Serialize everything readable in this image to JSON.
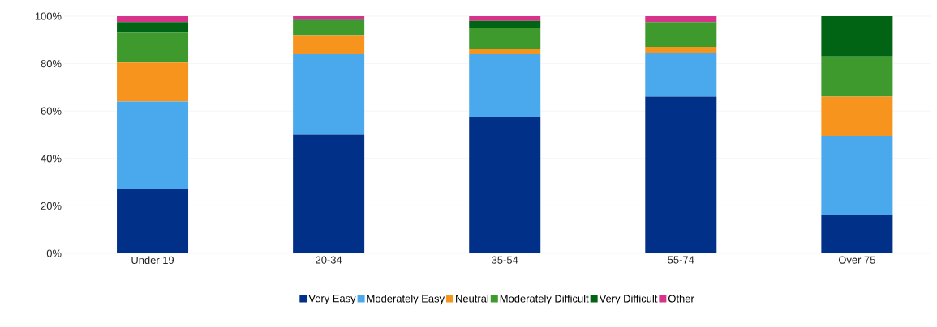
{
  "chart_data": {
    "type": "bar",
    "stacked": true,
    "categories": [
      "Under 19",
      "20-34",
      "35-54",
      "55-74",
      "Over 75"
    ],
    "series": [
      {
        "name": "Very Easy",
        "color": "#003087",
        "values": [
          27,
          50,
          57.5,
          66,
          16
        ]
      },
      {
        "name": "Moderately Easy",
        "color": "#4aa8ec",
        "values": [
          37,
          34,
          26.5,
          18.5,
          33.5
        ]
      },
      {
        "name": "Neutral",
        "color": "#f7941d",
        "values": [
          16.5,
          8,
          2,
          2.5,
          16.5
        ]
      },
      {
        "name": "Moderately Difficult",
        "color": "#3f9a2e",
        "values": [
          12.5,
          6,
          9,
          10.5,
          17
        ]
      },
      {
        "name": "Very Difficult",
        "color": "#006414",
        "values": [
          4.5,
          0.5,
          3,
          0,
          17
        ]
      },
      {
        "name": "Other",
        "color": "#d6338a",
        "values": [
          2.5,
          1.5,
          2,
          2.5,
          0
        ]
      }
    ],
    "ylim": [
      0,
      100
    ],
    "yticks": [
      {
        "value": 0,
        "label": "0%"
      },
      {
        "value": 20,
        "label": "20%"
      },
      {
        "value": 40,
        "label": "40%"
      },
      {
        "value": 60,
        "label": "60%"
      },
      {
        "value": 80,
        "label": "80%"
      },
      {
        "value": 100,
        "label": "100%"
      }
    ],
    "grid": "y",
    "legend": "bottom"
  }
}
